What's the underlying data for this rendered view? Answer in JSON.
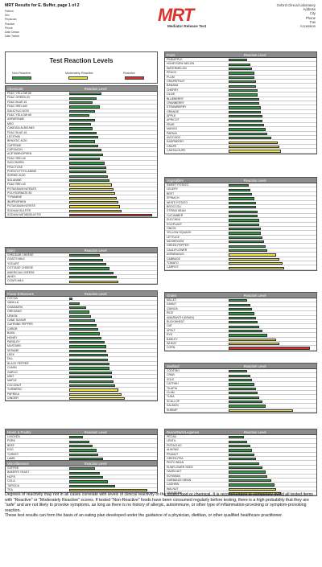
{
  "header": {
    "title": "MRT Results for E. Buffer, page 1 of 2",
    "lab": "Oxford Clinical Laboratory",
    "logo_text": "MRT",
    "logo_sub": "Mediator Release Test",
    "left_fields": [
      "Patient",
      "Sex",
      "Physician",
      "Practice",
      "Phone",
      "Date Drawn",
      "Date Tested"
    ],
    "right_fields": [
      "Address",
      "City",
      "Phone",
      "Fax",
      "Accession"
    ]
  },
  "legend": {
    "title": "Test Reaction Levels",
    "non_reactive": "Non-Reactive",
    "moderate": "Moderately Reactive",
    "reactive": "Reactive"
  },
  "colors": {
    "green": "#2e9a3e",
    "yellow": "#f1ea3c",
    "red": "#d9332c",
    "header": "#8d8d8d"
  },
  "reaction_level_label": "Reaction Level",
  "panels": [
    {
      "key": "chemicals",
      "title": "Chemicals",
      "items": [
        [
          "FD&C YELLOW #6",
          0.38,
          "g"
        ],
        [
          "FD&C GREEN #3",
          0.32,
          "g"
        ],
        [
          "FD&C BLUE #1",
          0.28,
          "g"
        ],
        [
          "FD&C RED #40",
          0.36,
          "g"
        ],
        [
          "SALICYLIC ACID",
          0.3,
          "g"
        ],
        [
          "FD&C YELLOW #5",
          0.24,
          "g"
        ],
        [
          "ASPARTAME",
          0.3,
          "g"
        ],
        [
          "MSG",
          0.26,
          "g"
        ],
        [
          "CANDIDA ALBICANS",
          0.28,
          "g"
        ],
        [
          "FD&C BLUE #2",
          0.32,
          "g"
        ],
        [
          "LECITHIN",
          0.34,
          "g"
        ],
        [
          "BENZOIC ACID",
          0.3,
          "g"
        ],
        [
          "CAFFEINE",
          0.34,
          "g"
        ],
        [
          "CAPSAICIN",
          0.38,
          "g"
        ],
        [
          "ACETAMINOPHEN",
          0.4,
          "g"
        ],
        [
          "FD&C RED #3",
          0.36,
          "g"
        ],
        [
          "SACCHARIN",
          0.42,
          "g"
        ],
        [
          "FRUCTOSE",
          0.44,
          "g"
        ],
        [
          "PHENYLETHYLAMINE",
          0.44,
          "g"
        ],
        [
          "SORBIC ACID",
          0.46,
          "g"
        ],
        [
          "SOLANINE",
          0.48,
          "g"
        ],
        [
          "FD&C RED #3",
          0.5,
          "y"
        ],
        [
          "POTASSIUM NITRATE",
          0.52,
          "y"
        ],
        [
          "POLYSORBATE 80",
          0.54,
          "y"
        ],
        [
          "TYRAMINE",
          0.56,
          "y"
        ],
        [
          "IBUPROPHEN",
          0.58,
          "y"
        ],
        [
          "POTASSIUM NITRITE",
          0.6,
          "y"
        ],
        [
          "SODIUM SULFITE",
          0.62,
          "y"
        ],
        [
          "SODIUM METABISULFITE",
          0.98,
          "r"
        ]
      ]
    },
    {
      "key": "dairy",
      "title": "Dairy",
      "items": [
        [
          "CHEDDAR CHEESE",
          0.36,
          "g"
        ],
        [
          "GOAT'S MILK",
          0.4,
          "g"
        ],
        [
          "YOGURT",
          0.44,
          "g"
        ],
        [
          "COTTAGE CHEESE",
          0.48,
          "g"
        ],
        [
          "AMERICAN CHEESE",
          0.52,
          "g"
        ],
        [
          "WHEY",
          0.56,
          "g"
        ],
        [
          "COW'S MILK",
          0.58,
          "y"
        ]
      ]
    },
    {
      "key": "flavor",
      "title": "Flavor Enhancers",
      "items": [
        [
          "COCOA",
          0.04,
          "g"
        ],
        [
          "VANILLA",
          0.12,
          "g"
        ],
        [
          "CINNAMON",
          0.2,
          "g"
        ],
        [
          "OREGANO",
          0.24,
          "g"
        ],
        [
          "LEMON",
          0.26,
          "g"
        ],
        [
          "CANE SUGAR",
          0.3,
          "g"
        ],
        [
          "CAYENNE PEPPER",
          0.32,
          "g"
        ],
        [
          "CAROB",
          0.34,
          "g"
        ],
        [
          "BASIL",
          0.36,
          "g"
        ],
        [
          "HONEY",
          0.38,
          "g"
        ],
        [
          "PARSLEY",
          0.42,
          "g"
        ],
        [
          "MUSTARD",
          0.44,
          "g"
        ],
        [
          "SESAME",
          0.44,
          "g"
        ],
        [
          "LEEK",
          0.46,
          "g"
        ],
        [
          "DILL",
          0.46,
          "g"
        ],
        [
          "BLACK PEPPER",
          0.48,
          "g"
        ],
        [
          "CUMIN",
          0.48,
          "g"
        ],
        [
          "GARLIC",
          0.5,
          "g"
        ],
        [
          "MINT",
          0.5,
          "g"
        ],
        [
          "MAPLE",
          0.52,
          "g"
        ],
        [
          "COCONUT",
          0.54,
          "g"
        ],
        [
          "TURMERIC",
          0.58,
          "y"
        ],
        [
          "PAPRIKA",
          0.62,
          "y"
        ],
        [
          "GINGER",
          0.66,
          "y"
        ]
      ]
    },
    {
      "key": "meats",
      "title": "Meats & Poultry",
      "items": [
        [
          "CHICKEN",
          0.16,
          "g"
        ],
        [
          "PORK",
          0.24,
          "g"
        ],
        [
          "BEEF",
          0.28,
          "g"
        ],
        [
          "EGG",
          0.32,
          "g"
        ],
        [
          "TURKEY",
          0.34,
          "g"
        ],
        [
          "LAMB",
          0.4,
          "g"
        ]
      ]
    },
    {
      "key": "misc",
      "title": "Miscellaneous",
      "items": [
        [
          "COFFEE",
          0.3,
          "g"
        ],
        [
          "BAKER'S YEAST",
          0.36,
          "g"
        ],
        [
          "HOPS",
          0.4,
          "g"
        ],
        [
          "COLA",
          0.46,
          "g"
        ],
        [
          "TAPIOCA",
          0.54,
          "g"
        ],
        [
          "TEA",
          0.92,
          "y"
        ]
      ]
    },
    {
      "key": "fruits",
      "title": "Fruits",
      "items": [
        [
          "PINEAPPLE",
          0.22,
          "g"
        ],
        [
          "HONEYDEW MELON",
          0.26,
          "g"
        ],
        [
          "WATERMELON",
          0.28,
          "g"
        ],
        [
          "PEACH",
          0.3,
          "g"
        ],
        [
          "PLUM",
          0.3,
          "g"
        ],
        [
          "GRAPEFRUIT",
          0.32,
          "g"
        ],
        [
          "BANANA",
          0.32,
          "g"
        ],
        [
          "CHERRY",
          0.34,
          "g"
        ],
        [
          "OLIVE",
          0.34,
          "g"
        ],
        [
          "BLUEBERRY",
          0.36,
          "g"
        ],
        [
          "CRANBERRY",
          0.36,
          "g"
        ],
        [
          "STRAWBERRY",
          0.38,
          "g"
        ],
        [
          "ORANGE",
          0.38,
          "g"
        ],
        [
          "APPLE",
          0.4,
          "g"
        ],
        [
          "APRICOT",
          0.4,
          "g"
        ],
        [
          "PEAR",
          0.42,
          "g"
        ],
        [
          "MANGO",
          0.44,
          "g"
        ],
        [
          "PAPAYA",
          0.46,
          "g"
        ],
        [
          "AVOCADO",
          0.5,
          "g"
        ],
        [
          "RASPBERRY",
          0.58,
          "y"
        ],
        [
          "GRAPE",
          0.6,
          "y"
        ],
        [
          "CANTALOUPE",
          0.62,
          "y"
        ]
      ]
    },
    {
      "key": "vegetables",
      "title": "Vegetables",
      "items": [
        [
          "SWEET POTATO",
          0.24,
          "g"
        ],
        [
          "CELERY",
          0.26,
          "g"
        ],
        [
          "BEET",
          0.28,
          "g"
        ],
        [
          "SPINACH",
          0.3,
          "g"
        ],
        [
          "WHITE POTATO",
          0.32,
          "g"
        ],
        [
          "BROCCOLI",
          0.32,
          "g"
        ],
        [
          "STRING BEAN",
          0.34,
          "g"
        ],
        [
          "CUCUMBER",
          0.34,
          "g"
        ],
        [
          "ZUCCHINI",
          0.36,
          "g"
        ],
        [
          "EGGPLANT",
          0.36,
          "g"
        ],
        [
          "ONION",
          0.38,
          "g"
        ],
        [
          "YELLOW SQUASH",
          0.38,
          "g"
        ],
        [
          "LETTUCE",
          0.4,
          "g"
        ],
        [
          "MUSHROOM",
          0.42,
          "g"
        ],
        [
          "GREEN PEPPER",
          0.44,
          "g"
        ],
        [
          "CAULIFLOWER",
          0.46,
          "g"
        ],
        [
          "ASPARAGUS",
          0.56,
          "y"
        ],
        [
          "CABBAGE",
          0.6,
          "y"
        ],
        [
          "TOMATO",
          0.64,
          "y"
        ],
        [
          "CARROT",
          0.66,
          "y"
        ]
      ]
    },
    {
      "key": "grains",
      "title": "Grains",
      "items": [
        [
          "MILLET",
          0.22,
          "g"
        ],
        [
          "KAMUT",
          0.26,
          "g"
        ],
        [
          "QUINOA",
          0.28,
          "g"
        ],
        [
          "RICE",
          0.3,
          "g"
        ],
        [
          "AMARANTH (GRAIN)",
          0.32,
          "g"
        ],
        [
          "BUCKWHEAT",
          0.34,
          "g"
        ],
        [
          "OAT",
          0.36,
          "g"
        ],
        [
          "SPELT",
          0.4,
          "g"
        ],
        [
          "RYE",
          0.46,
          "g"
        ],
        [
          "BARLEY",
          0.56,
          "y"
        ],
        [
          "WHEAT",
          0.6,
          "y"
        ],
        [
          "CORN",
          0.96,
          "r"
        ]
      ]
    },
    {
      "key": "seafood",
      "title": "Seafood",
      "items": [
        [
          "CODFISH",
          0.22,
          "g"
        ],
        [
          "CRAB",
          0.26,
          "g"
        ],
        [
          "SOLE",
          0.28,
          "g"
        ],
        [
          "CATFISH",
          0.3,
          "g"
        ],
        [
          "TILAPIA",
          0.32,
          "g"
        ],
        [
          "CLAM",
          0.34,
          "g"
        ],
        [
          "TUNA",
          0.36,
          "g"
        ],
        [
          "SCALLOP",
          0.4,
          "g"
        ],
        [
          "SALMON",
          0.44,
          "g"
        ],
        [
          "SHRIMP",
          0.76,
          "y"
        ]
      ]
    },
    {
      "key": "beans",
      "title": "Beans/Nuts/Legumes",
      "items": [
        [
          "PECAN",
          0.18,
          "g"
        ],
        [
          "LENTIL",
          0.22,
          "g"
        ],
        [
          "PISTACHIO",
          0.26,
          "g"
        ],
        [
          "ALMOND",
          0.28,
          "g"
        ],
        [
          "PEANUT",
          0.3,
          "g"
        ],
        [
          "GREEN PEA",
          0.32,
          "g"
        ],
        [
          "PINTO BEAN",
          0.36,
          "g"
        ],
        [
          "SUNFLOWER SEED",
          0.4,
          "g"
        ],
        [
          "HAZELNUT",
          0.44,
          "g"
        ],
        [
          "SOYBEAN",
          0.46,
          "g"
        ],
        [
          "GARBANZO BEAN",
          0.5,
          "g"
        ],
        [
          "CASHEW",
          0.54,
          "g"
        ],
        [
          "WALNUT",
          0.56,
          "y"
        ],
        [
          "LIMA BEAN",
          0.62,
          "y"
        ]
      ]
    }
  ],
  "footer": {
    "p1": "Degrees of reactivity may not in all cases correlate with levels of clinical reactivity to the tested food or chemical.  It is recommended to completely avoid all tested items with \"Reactive\" or \"Moderately Reactive\" scores. If tested \"Non-Reactive\" foods have been consumed regularly before testing, there is a high probability that they are \"safe\" and are not likely to provoke symptoms, as long as there is no history of allergic, autoimmune, or other type of inflammation-provoking or symptom-provoking reaction.",
    "p2": "These test results can form the basis of an eating plan developed under the guidance of a physician, dietitian, or other qualified healthcare practitioner."
  }
}
